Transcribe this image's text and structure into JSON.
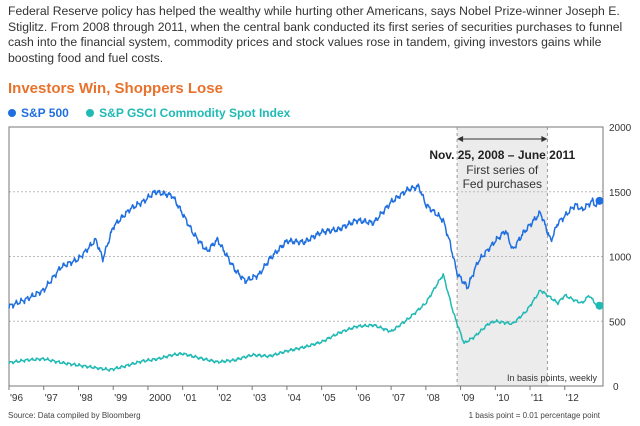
{
  "intro": "Federal Reserve policy has helped the wealthy while hurting other Americans, says Nobel Prize-winner Joseph E. Stiglitz. From 2008 through 2011, when the central bank conducted its first series of securities purchases to funnel cash into the financial system, commodity prices and stock values rose in tandem, giving investors gains while boosting food and fuel costs.",
  "footer": {
    "source": "Source: Data compiled by Bloomberg",
    "basis_note": "1 basis point = 0.01 percentage point"
  },
  "colors": {
    "title": "#e8722c",
    "sp500": "#1f6fe0",
    "gsci": "#20b9b4",
    "shade": "#ececec"
  },
  "chart_data": {
    "type": "line",
    "title": "Investors Win, Shoppers Lose",
    "unit_note": "In basis points, weekly",
    "ylim": [
      0,
      2000
    ],
    "yticks": [
      500,
      1000,
      1500,
      2000
    ],
    "yzero_label": "0",
    "xlim": [
      1996,
      2013.1
    ],
    "xticks": [
      {
        "x": 1996,
        "label": "'96"
      },
      {
        "x": 1997,
        "label": "'97"
      },
      {
        "x": 1998,
        "label": "'98"
      },
      {
        "x": 1999,
        "label": "'99"
      },
      {
        "x": 2000,
        "label": "2000"
      },
      {
        "x": 2001,
        "label": "'01"
      },
      {
        "x": 2002,
        "label": "'02"
      },
      {
        "x": 2003,
        "label": "'03"
      },
      {
        "x": 2004,
        "label": "'04"
      },
      {
        "x": 2005,
        "label": "'05"
      },
      {
        "x": 2006,
        "label": "'06"
      },
      {
        "x": 2007,
        "label": "'07"
      },
      {
        "x": 2008,
        "label": "'08"
      },
      {
        "x": 2009,
        "label": "'09"
      },
      {
        "x": 2010,
        "label": "'10"
      },
      {
        "x": 2011,
        "label": "'11"
      },
      {
        "x": 2012,
        "label": "'12"
      }
    ],
    "annotation": {
      "x_start": 2008.9,
      "x_end": 2011.5,
      "label": "Nov. 25, 2008 – June 2011",
      "sublabel_1": "First series of",
      "sublabel_2": "Fed purchases"
    },
    "series": [
      {
        "name": "S&P 500",
        "color": "#1f6fe0",
        "points": [
          [
            1996.0,
            615
          ],
          [
            1996.5,
            670
          ],
          [
            1997.0,
            740
          ],
          [
            1997.5,
            920
          ],
          [
            1998.0,
            980
          ],
          [
            1998.5,
            1130
          ],
          [
            1998.7,
            980
          ],
          [
            1999.0,
            1230
          ],
          [
            1999.5,
            1370
          ],
          [
            1999.9,
            1430
          ],
          [
            2000.2,
            1500
          ],
          [
            2000.7,
            1470
          ],
          [
            2001.0,
            1330
          ],
          [
            2001.3,
            1180
          ],
          [
            2001.7,
            1040
          ],
          [
            2002.0,
            1130
          ],
          [
            2002.5,
            900
          ],
          [
            2002.8,
            810
          ],
          [
            2003.2,
            860
          ],
          [
            2003.5,
            980
          ],
          [
            2004.0,
            1120
          ],
          [
            2004.5,
            1110
          ],
          [
            2005.0,
            1190
          ],
          [
            2005.5,
            1210
          ],
          [
            2006.0,
            1280
          ],
          [
            2006.5,
            1260
          ],
          [
            2007.0,
            1420
          ],
          [
            2007.5,
            1520
          ],
          [
            2007.8,
            1540
          ],
          [
            2008.0,
            1400
          ],
          [
            2008.5,
            1280
          ],
          [
            2008.7,
            1100
          ],
          [
            2008.9,
            870
          ],
          [
            2009.2,
            760
          ],
          [
            2009.5,
            960
          ],
          [
            2010.0,
            1120
          ],
          [
            2010.3,
            1200
          ],
          [
            2010.5,
            1050
          ],
          [
            2010.8,
            1180
          ],
          [
            2011.3,
            1340
          ],
          [
            2011.6,
            1120
          ],
          [
            2011.8,
            1260
          ],
          [
            2012.0,
            1310
          ],
          [
            2012.3,
            1400
          ],
          [
            2012.5,
            1360
          ],
          [
            2012.8,
            1430
          ],
          [
            2012.9,
            1390
          ],
          [
            2013.0,
            1430
          ]
        ]
      },
      {
        "name": "S&P GSCI Commodity Spot Index",
        "color": "#20b9b4",
        "points": [
          [
            1996.0,
            180
          ],
          [
            1996.5,
            200
          ],
          [
            1997.0,
            210
          ],
          [
            1997.5,
            180
          ],
          [
            1998.0,
            160
          ],
          [
            1998.5,
            140
          ],
          [
            1998.9,
            125
          ],
          [
            1999.3,
            150
          ],
          [
            1999.8,
            190
          ],
          [
            2000.3,
            210
          ],
          [
            2000.7,
            240
          ],
          [
            2001.0,
            250
          ],
          [
            2001.5,
            215
          ],
          [
            2002.0,
            185
          ],
          [
            2002.5,
            200
          ],
          [
            2003.0,
            240
          ],
          [
            2003.5,
            230
          ],
          [
            2004.0,
            270
          ],
          [
            2004.5,
            300
          ],
          [
            2005.0,
            340
          ],
          [
            2005.5,
            410
          ],
          [
            2006.0,
            460
          ],
          [
            2006.5,
            470
          ],
          [
            2007.0,
            420
          ],
          [
            2007.5,
            520
          ],
          [
            2008.0,
            640
          ],
          [
            2008.4,
            820
          ],
          [
            2008.5,
            860
          ],
          [
            2008.8,
            560
          ],
          [
            2009.1,
            330
          ],
          [
            2009.4,
            380
          ],
          [
            2009.8,
            480
          ],
          [
            2010.0,
            500
          ],
          [
            2010.5,
            480
          ],
          [
            2010.9,
            580
          ],
          [
            2011.3,
            740
          ],
          [
            2011.5,
            700
          ],
          [
            2011.8,
            640
          ],
          [
            2012.0,
            700
          ],
          [
            2012.3,
            660
          ],
          [
            2012.5,
            640
          ],
          [
            2012.7,
            700
          ],
          [
            2012.9,
            630
          ],
          [
            2013.0,
            620
          ]
        ]
      }
    ]
  }
}
